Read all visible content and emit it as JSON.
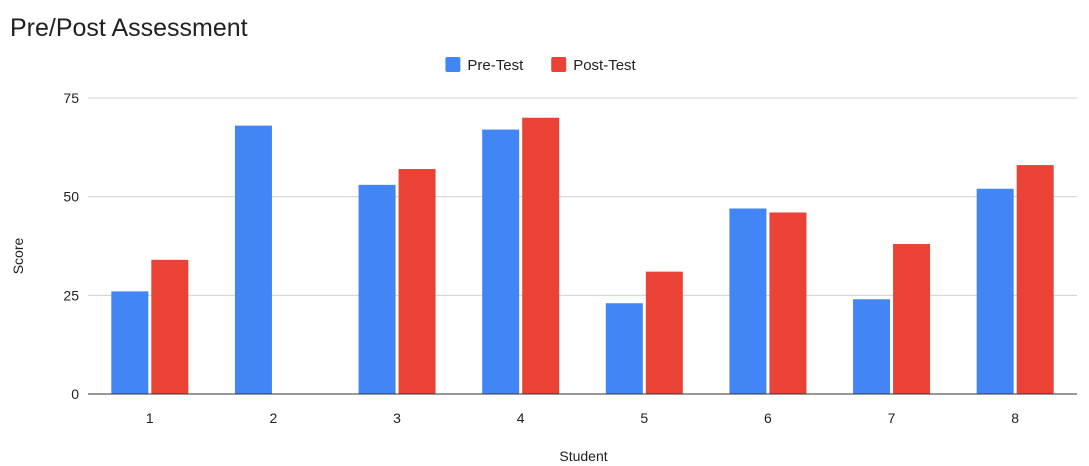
{
  "chart_data": {
    "type": "bar",
    "title": "Pre/Post Assessment",
    "xlabel": "Student",
    "ylabel": "Score",
    "categories": [
      "1",
      "2",
      "3",
      "4",
      "5",
      "6",
      "7",
      "8"
    ],
    "series": [
      {
        "name": "Pre-Test",
        "color": "#4285f4",
        "values": [
          26,
          68,
          53,
          67,
          23,
          47,
          24,
          52
        ]
      },
      {
        "name": "Post-Test",
        "color": "#ea4335",
        "values": [
          34,
          null,
          57,
          70,
          31,
          46,
          38,
          58
        ]
      }
    ],
    "ylim": [
      0,
      75
    ],
    "yticks": [
      0,
      25,
      50,
      75
    ],
    "grid": true,
    "legend_position": "top-center"
  }
}
